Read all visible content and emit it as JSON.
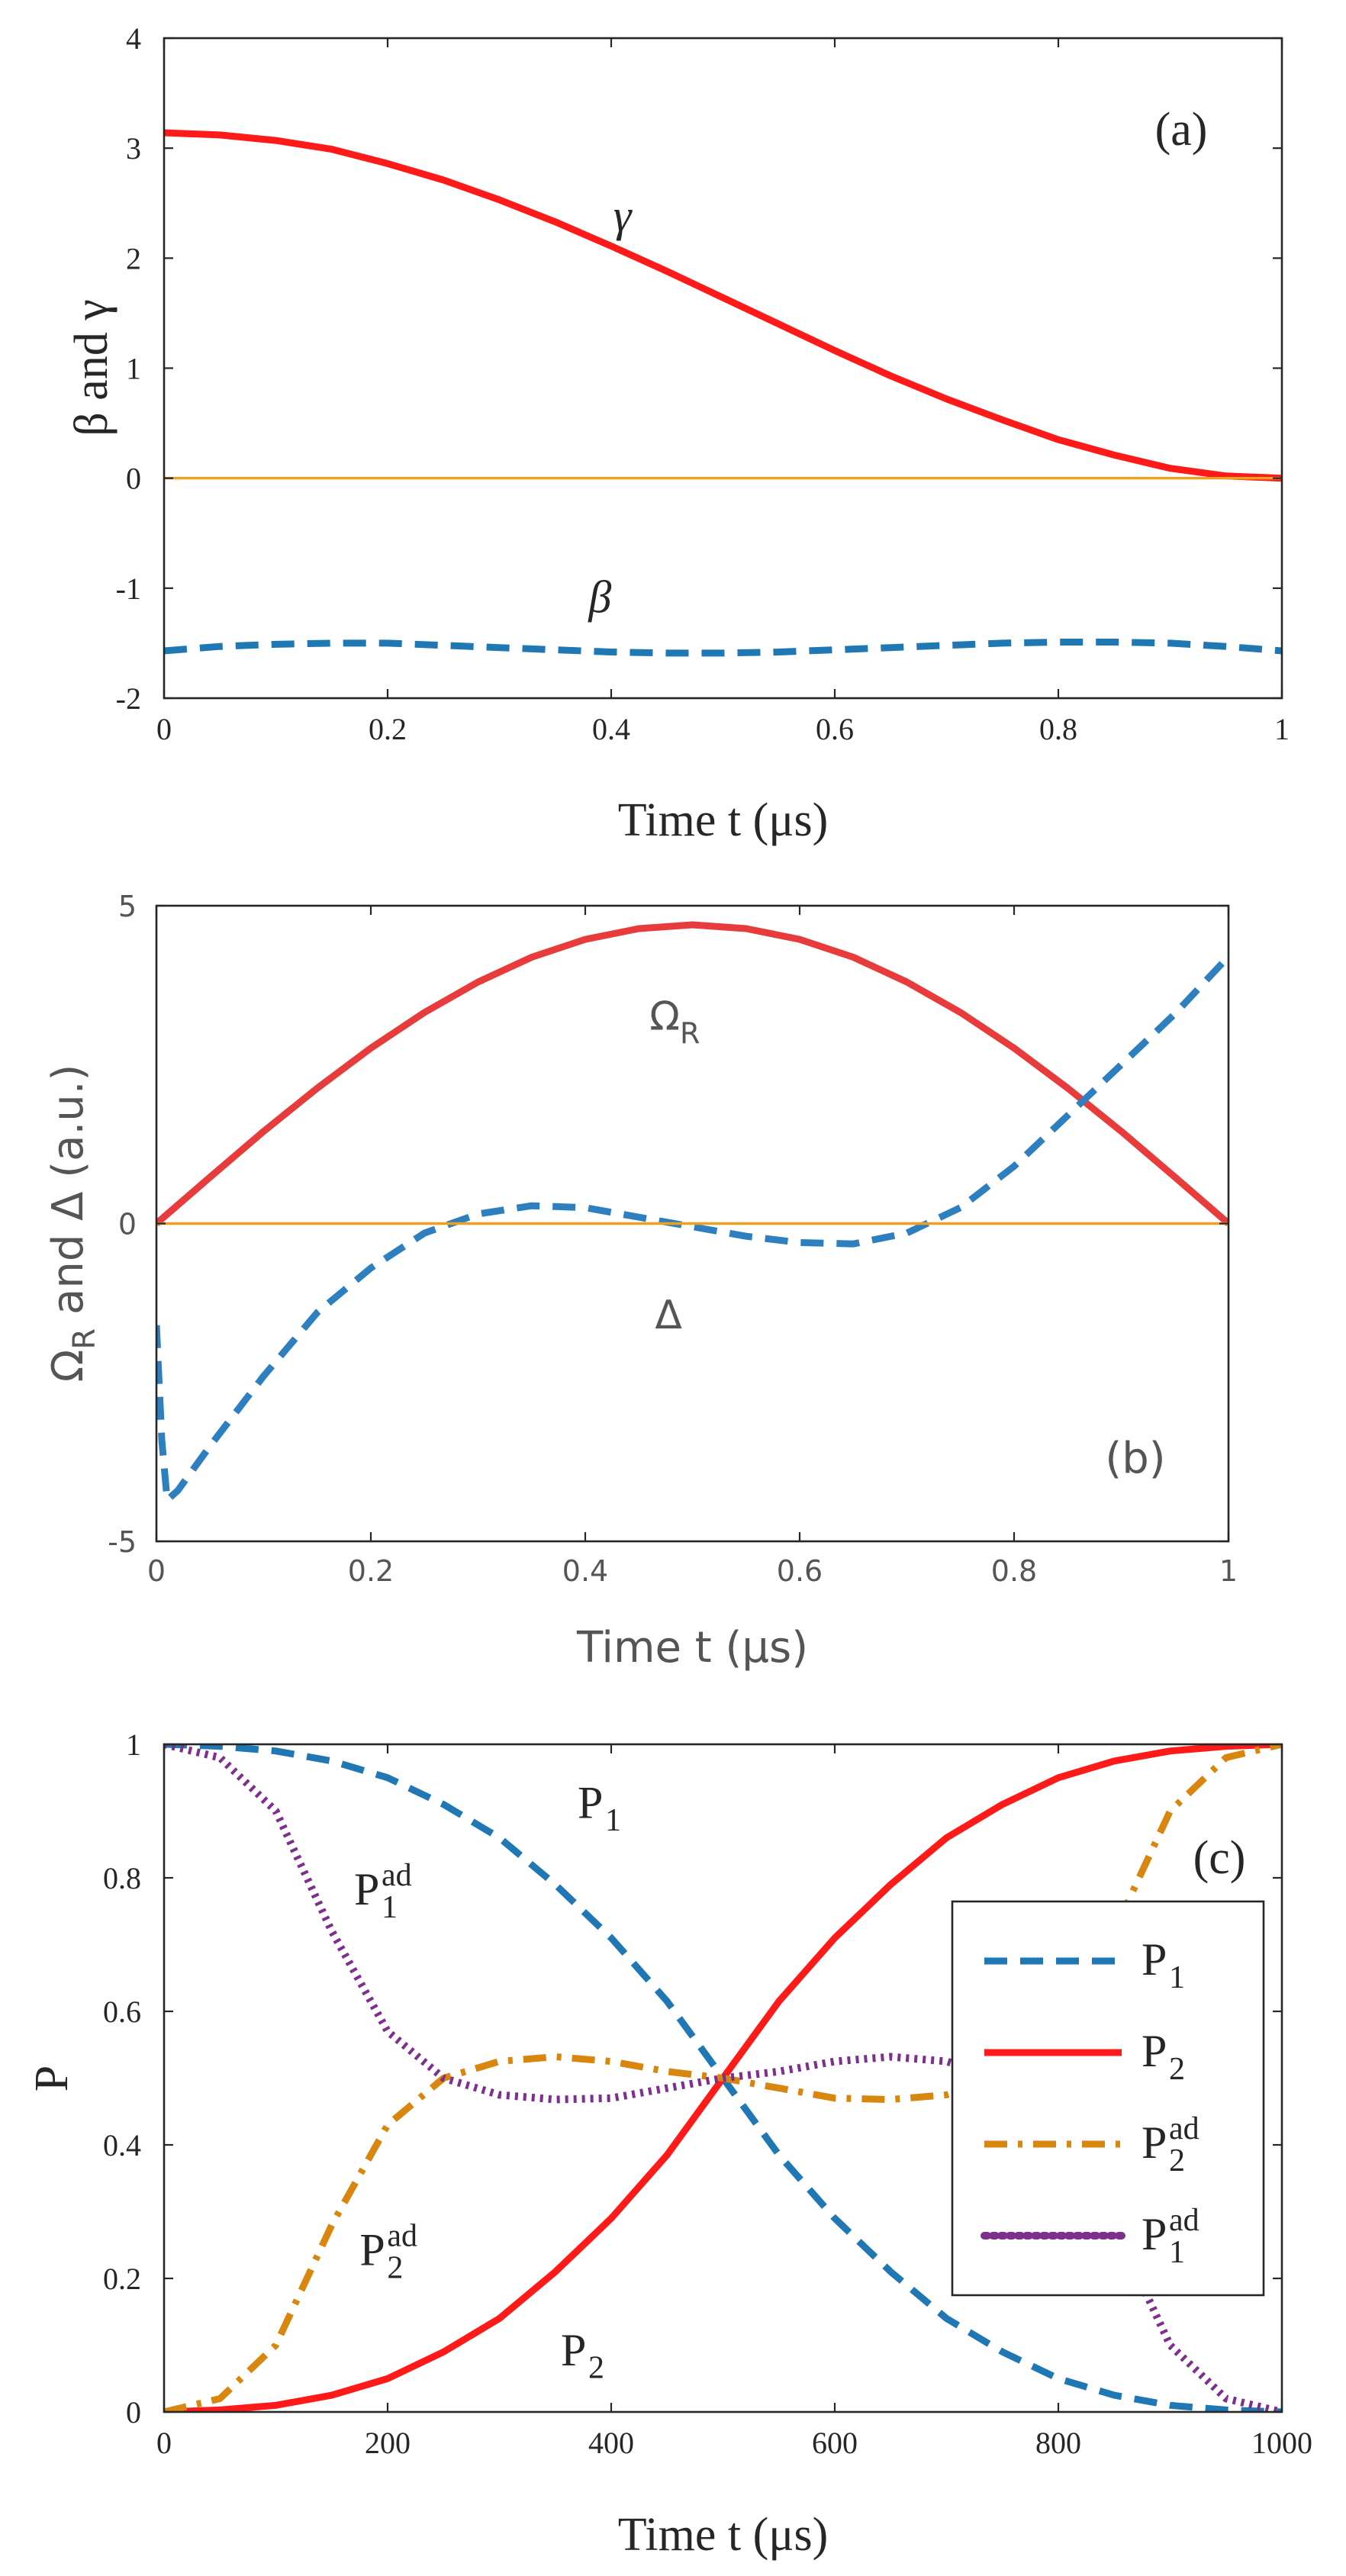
{
  "chart_data": [
    {
      "type": "line",
      "panel_label": "(a)",
      "xlabel": "Time t (μs)",
      "ylabel": "β and γ",
      "xlim": [
        0,
        1
      ],
      "ylim": [
        -2,
        4
      ],
      "xticks": [
        0,
        0.2,
        0.4,
        0.6,
        0.8,
        1
      ],
      "xtick_labels": [
        "0",
        "0.2",
        "0.4",
        "0.6",
        "0.8",
        "1"
      ],
      "yticks": [
        -2,
        -1,
        0,
        1,
        2,
        3,
        4
      ],
      "ytick_labels": [
        "-2",
        "-1",
        "0",
        "1",
        "2",
        "3",
        "4"
      ],
      "series": [
        {
          "name": "γ",
          "style": "solid",
          "color": "#ff1a1a",
          "x": [
            0,
            0.05,
            0.1,
            0.15,
            0.2,
            0.25,
            0.3,
            0.35,
            0.4,
            0.45,
            0.5,
            0.55,
            0.6,
            0.65,
            0.7,
            0.75,
            0.8,
            0.85,
            0.9,
            0.95,
            1
          ],
          "y": [
            3.14,
            3.12,
            3.07,
            2.99,
            2.86,
            2.71,
            2.53,
            2.33,
            2.11,
            1.88,
            1.64,
            1.4,
            1.16,
            0.93,
            0.72,
            0.53,
            0.35,
            0.21,
            0.09,
            0.02,
            0
          ]
        },
        {
          "name": "β",
          "style": "dashed",
          "color": "#1f77b4",
          "x": [
            0,
            0.05,
            0.1,
            0.15,
            0.2,
            0.25,
            0.3,
            0.35,
            0.4,
            0.45,
            0.5,
            0.55,
            0.6,
            0.65,
            0.7,
            0.75,
            0.8,
            0.85,
            0.9,
            0.95,
            1
          ],
          "y": [
            -1.57,
            -1.53,
            -1.51,
            -1.5,
            -1.5,
            -1.52,
            -1.54,
            -1.56,
            -1.58,
            -1.59,
            -1.59,
            -1.58,
            -1.56,
            -1.54,
            -1.52,
            -1.5,
            -1.49,
            -1.49,
            -1.5,
            -1.53,
            -1.57
          ]
        },
        {
          "name": "zero",
          "style": "solid",
          "color": "#f0a020",
          "x": [
            0,
            1
          ],
          "y": [
            0,
            0
          ]
        }
      ],
      "annotations": [
        {
          "text": "γ",
          "x": 0.41,
          "y": 2.25
        },
        {
          "text": "β",
          "x": 0.39,
          "y": -1.22
        }
      ]
    },
    {
      "type": "line",
      "panel_label": "(b)",
      "xlabel": "Time t (μs)",
      "ylabel": "Ω",
      "ylabel_sub": "R",
      "ylabel_rest": " and Δ (a.u.)",
      "xlim": [
        0,
        1
      ],
      "ylim": [
        -5,
        5
      ],
      "xticks": [
        0,
        0.2,
        0.4,
        0.6,
        0.8,
        1
      ],
      "xtick_labels": [
        "0",
        "0.2",
        "0.4",
        "0.6",
        "0.8",
        "1"
      ],
      "yticks": [
        -5,
        0,
        5
      ],
      "ytick_labels": [
        "-5",
        "0",
        "5"
      ],
      "series": [
        {
          "name": "ΩR",
          "style": "solid",
          "color": "#e83c3c",
          "x": [
            0,
            0.05,
            0.1,
            0.15,
            0.2,
            0.25,
            0.3,
            0.35,
            0.4,
            0.45,
            0.5,
            0.55,
            0.6,
            0.65,
            0.7,
            0.75,
            0.8,
            0.85,
            0.9,
            0.95,
            1
          ],
          "y": [
            0,
            0.73,
            1.45,
            2.13,
            2.76,
            3.32,
            3.8,
            4.19,
            4.47,
            4.64,
            4.7,
            4.64,
            4.47,
            4.19,
            3.8,
            3.32,
            2.76,
            2.13,
            1.45,
            0.73,
            0
          ]
        },
        {
          "name": "Δ",
          "style": "dashed",
          "color": "#2e7fbf",
          "x": [
            0,
            0.005,
            0.01,
            0.02,
            0.05,
            0.1,
            0.15,
            0.2,
            0.25,
            0.3,
            0.35,
            0.4,
            0.45,
            0.5,
            0.55,
            0.6,
            0.65,
            0.7,
            0.75,
            0.8,
            0.85,
            0.9,
            0.95,
            1
          ],
          "y": [
            -1.6,
            -3.4,
            -4.35,
            -4.2,
            -3.5,
            -2.4,
            -1.4,
            -0.7,
            -0.15,
            0.15,
            0.28,
            0.25,
            0.1,
            -0.05,
            -0.2,
            -0.3,
            -0.32,
            -0.15,
            0.25,
            0.9,
            1.7,
            2.5,
            3.3,
            4.2
          ]
        },
        {
          "name": "zero",
          "style": "solid",
          "color": "#f0a020",
          "x": [
            0,
            1
          ],
          "y": [
            0,
            0
          ]
        }
      ],
      "annotations": [
        {
          "text": "Ω",
          "sub": "R",
          "x": 0.46,
          "y": 3.05
        },
        {
          "text": "Δ",
          "x": 0.465,
          "y": -1.65
        }
      ]
    },
    {
      "type": "line",
      "panel_label": "(c)",
      "xlabel": "Time t (μs)",
      "ylabel": "P",
      "xlim": [
        0,
        1000
      ],
      "ylim": [
        0,
        1
      ],
      "xticks": [
        0,
        200,
        400,
        600,
        800,
        1000
      ],
      "xtick_labels": [
        "0",
        "200",
        "400",
        "600",
        "800",
        "1000"
      ],
      "yticks": [
        0,
        0.2,
        0.4,
        0.6,
        0.8,
        1
      ],
      "ytick_labels": [
        "0",
        "0.2",
        "0.4",
        "0.6",
        "0.8",
        "1"
      ],
      "series": [
        {
          "name": "P",
          "sub": "1",
          "sup": "",
          "style": "dashed",
          "color": "#1f77b4",
          "x": [
            0,
            50,
            100,
            150,
            200,
            250,
            300,
            350,
            400,
            450,
            500,
            550,
            600,
            650,
            700,
            750,
            800,
            850,
            900,
            950,
            1000
          ],
          "y": [
            1.0,
            0.997,
            0.99,
            0.975,
            0.95,
            0.91,
            0.86,
            0.79,
            0.71,
            0.615,
            0.5,
            0.385,
            0.29,
            0.21,
            0.14,
            0.09,
            0.05,
            0.025,
            0.01,
            0.003,
            0.0
          ]
        },
        {
          "name": "P",
          "sub": "2",
          "sup": "",
          "style": "solid",
          "color": "#ff1a1a",
          "x": [
            0,
            50,
            100,
            150,
            200,
            250,
            300,
            350,
            400,
            450,
            500,
            550,
            600,
            650,
            700,
            750,
            800,
            850,
            900,
            950,
            1000
          ],
          "y": [
            0.0,
            0.003,
            0.01,
            0.025,
            0.05,
            0.09,
            0.14,
            0.21,
            0.29,
            0.385,
            0.5,
            0.615,
            0.71,
            0.79,
            0.86,
            0.91,
            0.95,
            0.975,
            0.99,
            0.997,
            1.0
          ]
        },
        {
          "name": "P",
          "sub": "2",
          "sup": "ad",
          "style": "dashdot",
          "color": "#d9860f",
          "x": [
            0,
            50,
            100,
            150,
            200,
            250,
            300,
            350,
            400,
            450,
            500,
            550,
            600,
            650,
            700,
            750,
            800,
            850,
            900,
            950,
            1000
          ],
          "y": [
            0.0,
            0.02,
            0.1,
            0.28,
            0.43,
            0.5,
            0.525,
            0.532,
            0.525,
            0.51,
            0.5,
            0.485,
            0.47,
            0.468,
            0.475,
            0.5,
            0.57,
            0.72,
            0.9,
            0.98,
            1.0
          ]
        },
        {
          "name": "P",
          "sub": "1",
          "sup": "ad",
          "style": "dotted",
          "color": "#7e2f8e",
          "x": [
            0,
            50,
            100,
            150,
            200,
            250,
            300,
            350,
            400,
            450,
            500,
            550,
            600,
            650,
            700,
            750,
            800,
            850,
            900,
            950,
            1000
          ],
          "y": [
            1.0,
            0.98,
            0.9,
            0.72,
            0.57,
            0.5,
            0.475,
            0.468,
            0.47,
            0.485,
            0.5,
            0.51,
            0.525,
            0.532,
            0.525,
            0.5,
            0.43,
            0.28,
            0.1,
            0.02,
            0.0
          ]
        }
      ],
      "legend": {
        "placement": "right",
        "entries": [
          {
            "base": "P",
            "sub": "1",
            "sup": ""
          },
          {
            "base": "P",
            "sub": "2",
            "sup": ""
          },
          {
            "base": "P",
            "sub": "2",
            "sup": "ad"
          },
          {
            "base": "P",
            "sub": "1",
            "sup": "ad"
          }
        ]
      },
      "annotations": [
        {
          "base": "P",
          "sub": "1",
          "sup": "",
          "x": 385,
          "y": 0.89
        },
        {
          "base": "P",
          "sub": "1",
          "sup": "ad",
          "x": 185,
          "y": 0.76
        },
        {
          "base": "P",
          "sub": "2",
          "sup": "ad",
          "x": 190,
          "y": 0.22
        },
        {
          "base": "P",
          "sub": "2",
          "sup": "",
          "x": 370,
          "y": 0.07
        }
      ]
    }
  ]
}
